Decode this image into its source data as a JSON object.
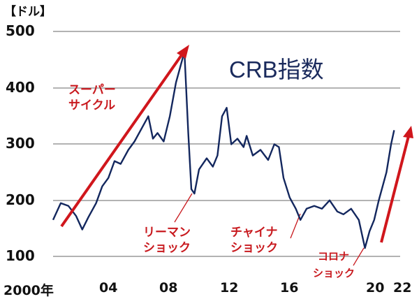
{
  "chart_data": {
    "type": "line",
    "title": "CRB指数",
    "ylabel": "【ドル】",
    "xlabel": "",
    "ylim": [
      100,
      500
    ],
    "yticks": [
      "500",
      "400",
      "300",
      "200",
      "100"
    ],
    "xticks": [
      "2000年",
      "04",
      "08",
      "12",
      "16",
      "20",
      "22"
    ],
    "grid": true,
    "series": [
      {
        "name": "CRB指数",
        "color": "#13275e",
        "x": [
          2000.0,
          2000.5,
          2001.0,
          2001.5,
          2001.9,
          2002.3,
          2002.8,
          2003.2,
          2003.6,
          2004.0,
          2004.4,
          2004.9,
          2005.3,
          2005.8,
          2006.2,
          2006.5,
          2006.8,
          2007.2,
          2007.6,
          2008.0,
          2008.3,
          2008.55,
          2008.8,
          2009.0,
          2009.2,
          2009.5,
          2010.0,
          2010.4,
          2010.7,
          2011.0,
          2011.3,
          2011.6,
          2012.0,
          2012.4,
          2012.6,
          2013.0,
          2013.5,
          2014.0,
          2014.4,
          2014.7,
          2015.0,
          2015.4,
          2015.8,
          2016.1,
          2016.5,
          2017.0,
          2017.5,
          2018.0,
          2018.5,
          2018.9,
          2019.4,
          2019.9,
          2020.3,
          2020.6,
          2020.9,
          2021.2,
          2021.5,
          2021.7,
          2022.0,
          2022.2
        ],
        "values": [
          165,
          195,
          190,
          172,
          148,
          170,
          195,
          225,
          240,
          270,
          265,
          290,
          305,
          330,
          350,
          310,
          320,
          305,
          350,
          410,
          440,
          465,
          320,
          220,
          212,
          255,
          275,
          260,
          280,
          350,
          365,
          300,
          310,
          295,
          315,
          280,
          290,
          272,
          300,
          295,
          240,
          205,
          185,
          165,
          185,
          190,
          185,
          200,
          180,
          175,
          185,
          165,
          115,
          145,
          165,
          200,
          230,
          250,
          300,
          325
        ]
      }
    ],
    "annotations": [
      {
        "text": "スーパーサイクル",
        "type": "arrow",
        "from": [
          2000.3,
          150
        ],
        "to": [
          2008.3,
          470
        ],
        "color": "#d0161c"
      },
      {
        "text": "リーマンショック",
        "at": [
          2009.0,
          212
        ],
        "color": "#c8191e"
      },
      {
        "text": "チャイナショック",
        "at": [
          2016.0,
          165
        ],
        "color": "#c8191e"
      },
      {
        "text": "コロナショック",
        "at": [
          2020.3,
          115
        ],
        "color": "#c8191e"
      },
      {
        "type": "arrow",
        "from": [
          2020.9,
          125
        ],
        "to": [
          2022.4,
          330
        ],
        "color": "#d0161c"
      }
    ]
  },
  "labels": {
    "unit": "【ドル】",
    "title": "CRB指数",
    "y500": "500",
    "y400": "400",
    "y300": "300",
    "y200": "200",
    "y100": "100",
    "x2000": "2000年",
    "x04": "04",
    "x08": "08",
    "x12": "12",
    "x16": "16",
    "x20": "20",
    "x22": "22",
    "super_1": "スーパー",
    "super_2": "サイクル",
    "lehman_1": "リーマン",
    "lehman_2": "ショック",
    "china_1": "チャイナ",
    "china_2": "ショック",
    "corona_1": "コロナ",
    "corona_2": "ショック"
  }
}
